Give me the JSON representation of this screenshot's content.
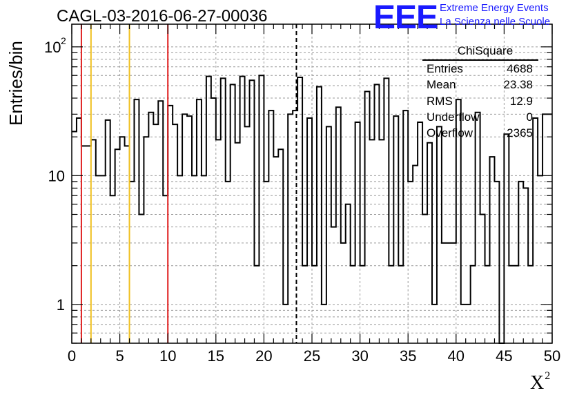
{
  "title": "CAGL-03-2016-06-27-00036",
  "logo": {
    "text": "EEE",
    "line1": "Extreme Energy Events",
    "line2": "La Scienza nelle Scuole"
  },
  "stats_box": {
    "name": "ChiSquare",
    "rows": [
      {
        "label": "Entries",
        "value": "4688"
      },
      {
        "label": "Mean",
        "value": "23.38"
      },
      {
        "label": "RMS",
        "value": "12.9"
      },
      {
        "label": "Underflow",
        "value": "0"
      },
      {
        "label": "Overflow",
        "value": "2365"
      }
    ]
  },
  "chart_data": {
    "type": "histogram",
    "title": "CAGL-03-2016-06-27-00036",
    "xlabel": "X",
    "xlabel_superscript": "2",
    "ylabel": "Entries/bin",
    "xlim": [
      0,
      50
    ],
    "ylim": [
      0.5,
      150
    ],
    "yscale": "log",
    "grid": true,
    "bin_width": 0.5,
    "x_ticks": [
      0,
      5,
      10,
      15,
      20,
      25,
      30,
      35,
      40,
      45,
      50
    ],
    "y_tick_labels": [
      "1",
      "10",
      "10^2"
    ],
    "bin_values": [
      22,
      28,
      17,
      17,
      19,
      10,
      10,
      27,
      7,
      16,
      20,
      17,
      9,
      39,
      5,
      20,
      31,
      25,
      38,
      7,
      35,
      25,
      10,
      30,
      29,
      10,
      39,
      10,
      59,
      40,
      19,
      57,
      9,
      51,
      18,
      59,
      24,
      55,
      2,
      60,
      9,
      32,
      14,
      16,
      1,
      30,
      32,
      58,
      2,
      28,
      2,
      49,
      1,
      24,
      4,
      34,
      3,
      6,
      2,
      26,
      2,
      45,
      19,
      51,
      19,
      57,
      2,
      29,
      2,
      32,
      9,
      12,
      26,
      5,
      18,
      1,
      24,
      3,
      3,
      3,
      39,
      1,
      1,
      2,
      31,
      5,
      2,
      14,
      9,
      0.5,
      21,
      2,
      2,
      9,
      8,
      2,
      28,
      10,
      30,
      30
    ],
    "vertical_lines": [
      {
        "x": 1,
        "color": "#e02020",
        "style": "solid"
      },
      {
        "x": 2,
        "color": "#f0c020",
        "style": "solid"
      },
      {
        "x": 6,
        "color": "#f0c020",
        "style": "solid"
      },
      {
        "x": 10,
        "color": "#e02020",
        "style": "solid"
      },
      {
        "x": 23.38,
        "color": "#000000",
        "style": "dashed"
      }
    ]
  }
}
